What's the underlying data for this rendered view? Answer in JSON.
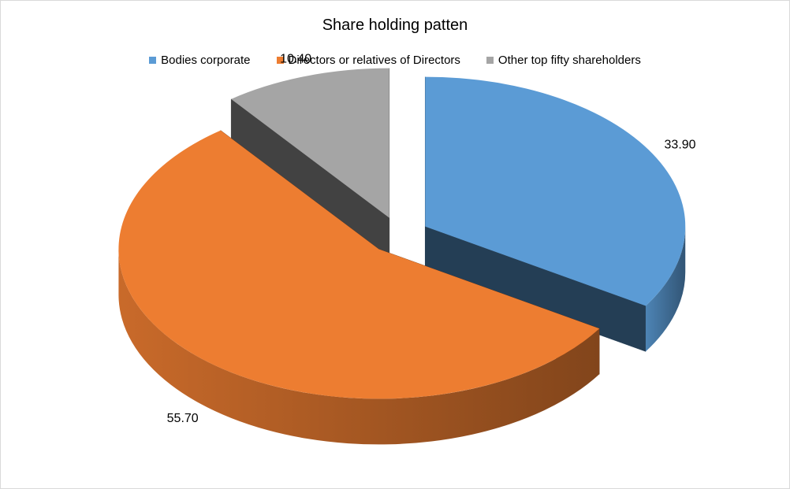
{
  "chart_data": {
    "type": "pie",
    "title": "Share holding patten",
    "legend_position": "top",
    "style": "3d-exploded",
    "slices": [
      {
        "label": "Bodies corporate",
        "value": 33.9,
        "display": "33.90",
        "color": "#5B9BD5"
      },
      {
        "label": "Directors or relatives of Directors",
        "value": 55.7,
        "display": "55.70",
        "color": "#ED7D31"
      },
      {
        "label": "Other top fifty shareholders",
        "value": 10.4,
        "display": "10.40",
        "color": "#A5A5A5"
      }
    ]
  }
}
